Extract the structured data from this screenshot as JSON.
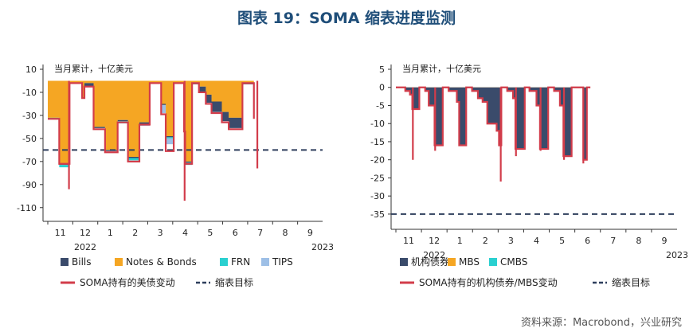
{
  "title": "图表 19：SOMA 缩表进度监测",
  "source": "资料来源：Macrobond，兴业研究",
  "colors": {
    "dark": "#3a4b6b",
    "orange": "#f5a623",
    "frn": "#2ad0d0",
    "tips": "#9dbfe6",
    "red": "#d23c4a",
    "target": "#2e3e5c"
  },
  "chart_data": [
    {
      "type": "area",
      "unit_label": "当月累计，十亿美元",
      "ylim": [
        -115,
        10
      ],
      "yticks": [
        10,
        -10,
        -30,
        -50,
        -70,
        -90,
        -110
      ],
      "ytick_labels": [
        "10",
        "-10",
        "-30",
        "-50",
        "-70",
        "-90",
        "-110"
      ],
      "xlim": [
        0,
        24
      ],
      "month_ticks": [
        "11",
        "12",
        "1",
        "2",
        "3",
        "4",
        "5",
        "6",
        "7",
        "8",
        "9"
      ],
      "years": [
        {
          "label": "2022",
          "x": 1.5
        },
        {
          "label": "2023",
          "x": 11
        }
      ],
      "target": -60,
      "legend": [
        {
          "label": "Bills",
          "color": "dark"
        },
        {
          "label": "Notes & Bonds",
          "color": "orange"
        },
        {
          "label": "FRN",
          "color": "frn"
        },
        {
          "label": "TIPS",
          "color": "tips"
        },
        {
          "label": "SOMA持有的美债变动",
          "type": "line",
          "color": "red"
        },
        {
          "label": "缩表目标",
          "type": "dash",
          "color": "target"
        }
      ],
      "components": {
        "notes": [
          [
            0.0,
            -32
          ],
          [
            1.0,
            -72
          ],
          [
            1.9,
            -2
          ],
          [
            3.0,
            -15
          ],
          [
            3.2,
            -2
          ],
          [
            4.0,
            -40
          ],
          [
            5.0,
            -60
          ],
          [
            6.1,
            -34
          ],
          [
            7.0,
            -66
          ],
          [
            8.0,
            -36
          ],
          [
            8.9,
            -2
          ],
          [
            9.9,
            -20
          ],
          [
            10.3,
            -48
          ],
          [
            11.0,
            -2
          ],
          [
            11.9,
            -40
          ],
          [
            12.0,
            -70
          ],
          [
            12.6,
            -2
          ],
          [
            13.2,
            -5
          ],
          [
            13.8,
            -12
          ],
          [
            14.3,
            -18
          ],
          [
            15.2,
            -27
          ],
          [
            15.8,
            -32
          ],
          [
            16.2,
            -32
          ],
          [
            17.0,
            -2
          ],
          [
            18.0,
            -31
          ]
        ],
        "bills": [
          [
            0.0,
            0
          ],
          [
            1.0,
            -1
          ],
          [
            1.9,
            0
          ],
          [
            3.0,
            0
          ],
          [
            3.2,
            -3
          ],
          [
            4.0,
            -1
          ],
          [
            5.0,
            -1
          ],
          [
            6.1,
            -1
          ],
          [
            7.0,
            -1
          ],
          [
            8.0,
            -2
          ],
          [
            8.9,
            0
          ],
          [
            9.9,
            -1
          ],
          [
            10.3,
            -1
          ],
          [
            11.0,
            0
          ],
          [
            11.9,
            -1
          ],
          [
            12.0,
            -1
          ],
          [
            12.6,
            -1
          ],
          [
            13.2,
            -5
          ],
          [
            13.8,
            -7
          ],
          [
            14.3,
            -9
          ],
          [
            15.2,
            -8
          ],
          [
            15.8,
            -9
          ],
          [
            16.2,
            -9
          ],
          [
            17.0,
            -1
          ],
          [
            18.0,
            -1
          ]
        ],
        "frn": [
          [
            0.0,
            -1
          ],
          [
            1.0,
            -2
          ],
          [
            1.9,
            0
          ],
          [
            3.0,
            0
          ],
          [
            3.2,
            0
          ],
          [
            4.0,
            0
          ],
          [
            5.0,
            0
          ],
          [
            6.1,
            -2
          ],
          [
            7.0,
            -2
          ],
          [
            8.0,
            0
          ],
          [
            8.9,
            0
          ],
          [
            9.9,
            0
          ],
          [
            10.3,
            -1
          ],
          [
            11.0,
            0
          ],
          [
            11.9,
            -2
          ],
          [
            12.0,
            -2
          ],
          [
            12.6,
            0
          ],
          [
            13.2,
            0
          ],
          [
            13.8,
            0
          ],
          [
            14.3,
            0
          ],
          [
            15.2,
            0
          ],
          [
            15.8,
            0
          ],
          [
            16.2,
            0
          ],
          [
            17.0,
            0
          ],
          [
            18.0,
            -2
          ]
        ],
        "tips": [
          [
            0.0,
            0
          ],
          [
            1.0,
            0
          ],
          [
            1.9,
            0
          ],
          [
            3.0,
            0
          ],
          [
            3.2,
            0
          ],
          [
            4.0,
            0
          ],
          [
            5.0,
            0
          ],
          [
            6.1,
            0
          ],
          [
            7.0,
            0
          ],
          [
            8.0,
            -1
          ],
          [
            8.9,
            0
          ],
          [
            9.9,
            -7
          ],
          [
            10.3,
            -5
          ],
          [
            11.0,
            0
          ],
          [
            11.9,
            0
          ],
          [
            12.0,
            0
          ],
          [
            12.6,
            0
          ],
          [
            13.2,
            0
          ],
          [
            13.8,
            0
          ],
          [
            14.3,
            0
          ],
          [
            15.2,
            0
          ],
          [
            15.8,
            0
          ],
          [
            16.2,
            0
          ],
          [
            17.0,
            0
          ],
          [
            18.0,
            0
          ]
        ]
      },
      "soma_line": [
        [
          0.0,
          -33
        ],
        [
          1.0,
          -72
        ],
        [
          1.9,
          -2
        ],
        [
          3.0,
          -15
        ],
        [
          3.2,
          -5
        ],
        [
          4.0,
          -42
        ],
        [
          5.0,
          -62
        ],
        [
          6.1,
          -36
        ],
        [
          7.0,
          -70
        ],
        [
          8.0,
          -38
        ],
        [
          8.9,
          -2
        ],
        [
          9.9,
          -29
        ],
        [
          10.3,
          -61
        ],
        [
          11.0,
          -2
        ],
        [
          11.9,
          -44
        ],
        [
          12.0,
          -72
        ],
        [
          12.6,
          -2
        ],
        [
          13.2,
          -10
        ],
        [
          13.8,
          -20
        ],
        [
          14.3,
          -28
        ],
        [
          15.2,
          -36
        ],
        [
          15.8,
          -42
        ],
        [
          16.2,
          -42
        ],
        [
          17.0,
          -2
        ],
        [
          18.0,
          -33
        ]
      ],
      "soma_spikes": [
        [
          1.85,
          -94
        ],
        [
          11.95,
          -104
        ],
        [
          18.3,
          -76
        ]
      ]
    },
    {
      "type": "area",
      "unit_label": "当月累计，十亿美元",
      "ylim": [
        -37,
        5
      ],
      "yticks": [
        5,
        0,
        -5,
        -10,
        -15,
        -20,
        -25,
        -30,
        -35
      ],
      "ytick_labels": [
        "5",
        "0",
        "-5",
        "-10",
        "-15",
        "-20",
        "-25",
        "-30",
        "-35"
      ],
      "xlim": [
        0,
        24
      ],
      "month_ticks": [
        "11",
        "12",
        "1",
        "2",
        "3",
        "4",
        "5",
        "6",
        "7",
        "8",
        "9"
      ],
      "years": [
        {
          "label": "2022",
          "x": 1.5
        },
        {
          "label": "2023",
          "x": 11
        }
      ],
      "target": -35,
      "legend": [
        {
          "label": "机构债券",
          "color": "dark"
        },
        {
          "label": "MBS",
          "color": "orange"
        },
        {
          "label": "CMBS",
          "color": "frn"
        },
        {
          "label": "SOMA持有的机构债券/MBS变动",
          "type": "line",
          "color": "red"
        },
        {
          "label": "缩表目标",
          "type": "dash",
          "color": "target"
        }
      ],
      "components": {
        "mbs": [
          [
            0.0,
            0
          ],
          [
            0.8,
            -1
          ],
          [
            1.2,
            -2
          ],
          [
            1.4,
            -6
          ],
          [
            2.0,
            0
          ],
          [
            2.5,
            -1
          ],
          [
            2.8,
            -5
          ],
          [
            3.3,
            -16
          ],
          [
            4.0,
            0
          ],
          [
            4.5,
            -1
          ],
          [
            5.2,
            -4
          ],
          [
            5.4,
            -16
          ],
          [
            6.0,
            0
          ],
          [
            6.5,
            -1
          ],
          [
            7.0,
            -3
          ],
          [
            7.4,
            -4
          ],
          [
            7.8,
            -10
          ],
          [
            8.2,
            -10
          ],
          [
            8.6,
            -12
          ],
          [
            8.8,
            -16
          ],
          [
            9.0,
            0
          ],
          [
            9.5,
            -1
          ],
          [
            10.0,
            -3
          ],
          [
            10.2,
            -17
          ],
          [
            11.0,
            0
          ],
          [
            11.4,
            -1
          ],
          [
            12.0,
            -5
          ],
          [
            12.3,
            -17
          ],
          [
            13.0,
            0
          ],
          [
            13.5,
            -1
          ],
          [
            14.0,
            -5
          ],
          [
            14.3,
            -19
          ],
          [
            15.0,
            0
          ],
          [
            16.0,
            -20
          ],
          [
            16.3,
            0
          ],
          [
            16.6,
            0
          ]
        ],
        "cmbs": [
          [
            0.0,
            0
          ],
          [
            16.6,
            0
          ]
        ],
        "agency": [
          [
            0.0,
            0
          ],
          [
            16.6,
            0
          ]
        ]
      },
      "soma_line": [
        [
          0.0,
          0
        ],
        [
          0.8,
          -1
        ],
        [
          1.2,
          -2
        ],
        [
          1.4,
          -6
        ],
        [
          2.0,
          0
        ],
        [
          2.5,
          -1
        ],
        [
          2.8,
          -5
        ],
        [
          3.3,
          -16
        ],
        [
          4.0,
          0
        ],
        [
          4.5,
          -1
        ],
        [
          5.2,
          -4
        ],
        [
          5.4,
          -16
        ],
        [
          6.0,
          0
        ],
        [
          6.5,
          -1
        ],
        [
          7.0,
          -3
        ],
        [
          7.4,
          -4
        ],
        [
          7.8,
          -10
        ],
        [
          8.2,
          -10
        ],
        [
          8.6,
          -12
        ],
        [
          8.8,
          -16
        ],
        [
          9.0,
          0
        ],
        [
          9.5,
          -1
        ],
        [
          10.0,
          -3
        ],
        [
          10.2,
          -17
        ],
        [
          11.0,
          0
        ],
        [
          11.4,
          -1
        ],
        [
          12.0,
          -5
        ],
        [
          12.3,
          -17
        ],
        [
          13.0,
          0
        ],
        [
          13.5,
          -1
        ],
        [
          14.0,
          -5
        ],
        [
          14.3,
          -19
        ],
        [
          15.0,
          0
        ],
        [
          16.0,
          -20
        ],
        [
          16.3,
          0
        ],
        [
          16.6,
          0
        ]
      ],
      "soma_spikes": [
        [
          1.45,
          -20
        ],
        [
          3.35,
          -17.5
        ],
        [
          8.95,
          -26
        ],
        [
          10.25,
          -19
        ],
        [
          12.35,
          -17.5
        ],
        [
          14.35,
          -20
        ],
        [
          16.0,
          -21
        ]
      ]
    }
  ]
}
